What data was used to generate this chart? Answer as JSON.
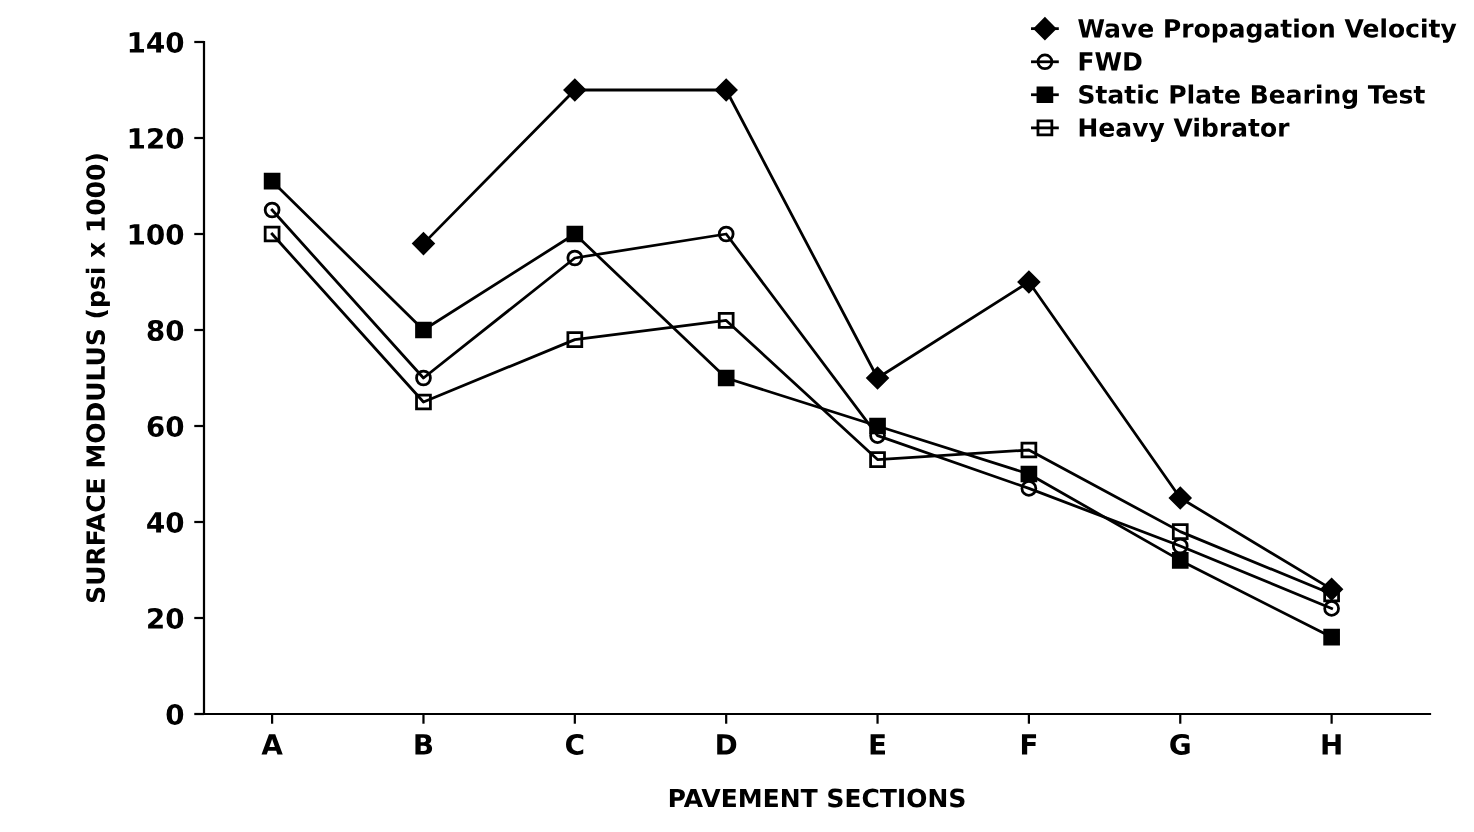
{
  "chart_data": {
    "type": "line",
    "xlabel": "PAVEMENT SECTIONS",
    "ylabel": "SURFACE MODULUS (psi x 1000)",
    "categories": [
      "A",
      "B",
      "C",
      "D",
      "E",
      "F",
      "G",
      "H"
    ],
    "series": [
      {
        "name": "Wave Propagation Velocity",
        "color": "#000000",
        "marker": "diamond",
        "values": [
          null,
          98,
          130,
          130,
          70,
          90,
          45,
          26
        ]
      },
      {
        "name": "FWD",
        "color": "#000000",
        "marker": "circle",
        "values": [
          105,
          70,
          95,
          100,
          58,
          47,
          35,
          22
        ]
      },
      {
        "name": "Static Plate Bearing Test",
        "color": "#000000",
        "marker": "square",
        "values": [
          111,
          80,
          100,
          70,
          60,
          50,
          32,
          16
        ]
      },
      {
        "name": "Heavy Vibrator",
        "color": "#000000",
        "marker": "square",
        "values": [
          100,
          65,
          78,
          82,
          53,
          55,
          38,
          25
        ]
      }
    ],
    "ylim": [
      0,
      140
    ],
    "yticks": [
      0,
      20,
      40,
      60,
      80,
      100,
      120,
      140
    ],
    "grid": false,
    "legend": "top right",
    "line_style": "solid"
  }
}
